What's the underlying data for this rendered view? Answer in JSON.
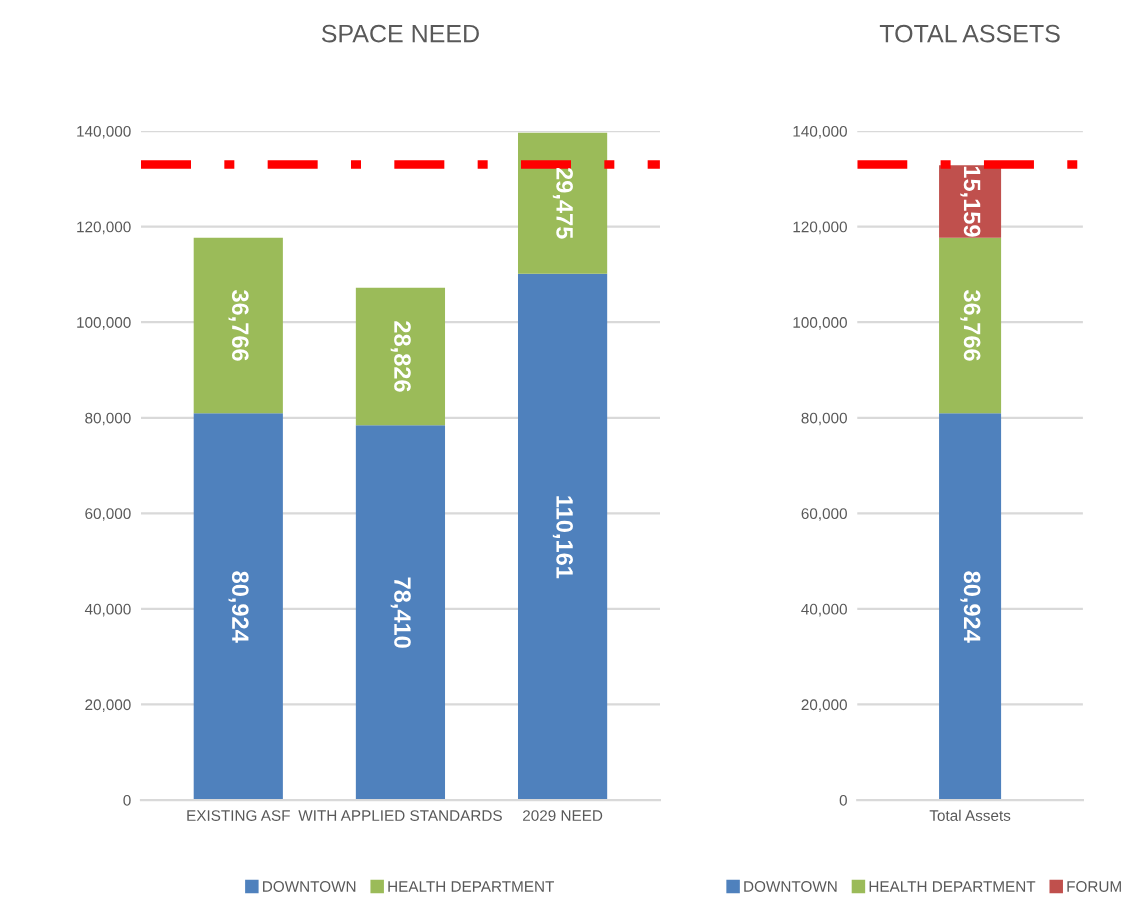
{
  "chart_data": [
    {
      "type": "bar",
      "title": "SPACE NEED",
      "stacked": true,
      "categories": [
        "EXISTING ASF",
        "WITH APPLIED STANDARDS",
        "2029 NEED"
      ],
      "series": [
        {
          "name": "DOWNTOWN",
          "color": "#4f81bd",
          "values": [
            80924,
            78410,
            110161
          ],
          "value_labels": [
            "80,924",
            "78,410",
            "110,161"
          ]
        },
        {
          "name": "HEALTH DEPARTMENT",
          "color": "#9bbb59",
          "values": [
            36766,
            28826,
            29475
          ],
          "value_labels": [
            "36,766",
            "28,826",
            "29,475"
          ]
        }
      ],
      "ylim": [
        0,
        140000
      ],
      "yticks": [
        {
          "value": 0,
          "label": "0"
        },
        {
          "value": 20000,
          "label": "20,000"
        },
        {
          "value": 40000,
          "label": "40,000"
        },
        {
          "value": 60000,
          "label": "60,000"
        },
        {
          "value": 80000,
          "label": "80,000"
        },
        {
          "value": 100000,
          "label": "100,000"
        },
        {
          "value": 120000,
          "label": "120,000"
        },
        {
          "value": 140000,
          "label": "140,000"
        }
      ],
      "grid": "y",
      "legend": "bottom",
      "ref_lines": [
        {
          "axis": "y",
          "value": 133000,
          "label": null,
          "color": "#ff0000",
          "line_style": "dashdot"
        }
      ]
    },
    {
      "type": "bar",
      "title": "TOTAL ASSETS",
      "stacked": true,
      "categories": [
        "Total Assets"
      ],
      "series": [
        {
          "name": "DOWNTOWN",
          "color": "#4f81bd",
          "values": [
            80924
          ],
          "value_labels": [
            "80,924"
          ]
        },
        {
          "name": "HEALTH DEPARTMENT",
          "color": "#9bbb59",
          "values": [
            36766
          ],
          "value_labels": [
            "36,766"
          ]
        },
        {
          "name": "FORUM",
          "color": "#c0504d",
          "values": [
            15159
          ],
          "value_labels": [
            "15,159"
          ]
        }
      ],
      "ylim": [
        0,
        140000
      ],
      "yticks": [
        {
          "value": 0,
          "label": "0"
        },
        {
          "value": 20000,
          "label": "20,000"
        },
        {
          "value": 40000,
          "label": "40,000"
        },
        {
          "value": 60000,
          "label": "60,000"
        },
        {
          "value": 80000,
          "label": "80,000"
        },
        {
          "value": 100000,
          "label": "100,000"
        },
        {
          "value": 120000,
          "label": "120,000"
        },
        {
          "value": 140000,
          "label": "140,000"
        }
      ],
      "grid": "y",
      "legend": "bottom",
      "ref_lines": [
        {
          "axis": "y",
          "value": 133000,
          "label": null,
          "color": "#ff0000",
          "line_style": "dashdot"
        }
      ]
    }
  ]
}
